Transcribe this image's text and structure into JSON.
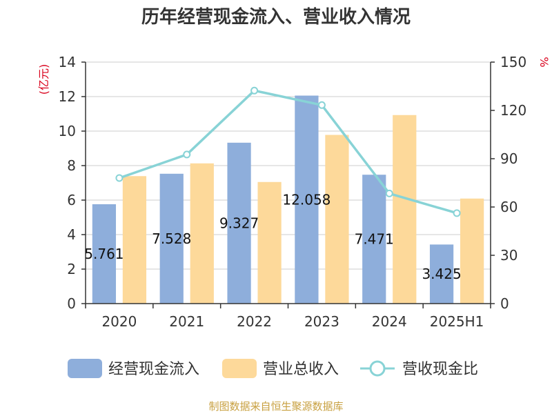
{
  "chart_data": {
    "type": "bar",
    "title": "历年经营现金流入、营业收入情况",
    "categories": [
      "2020",
      "2021",
      "2022",
      "2023",
      "2024",
      "2025H1"
    ],
    "y_left": {
      "unit": "(亿元)",
      "ylim": [
        0,
        14
      ],
      "ticks": [
        0,
        2,
        4,
        6,
        8,
        10,
        12,
        14
      ]
    },
    "y_right": {
      "unit": "%",
      "ylim": [
        0,
        150
      ],
      "ticks": [
        0,
        30,
        60,
        90,
        120,
        150
      ]
    },
    "series": [
      {
        "name": "经营现金流入",
        "kind": "bar",
        "axis": "left",
        "color": "#8eaedb",
        "values": [
          5.761,
          7.528,
          9.327,
          12.058,
          7.471,
          3.425
        ],
        "labels": [
          "5.761",
          "7.528",
          "9.327",
          "12.058",
          "7.471",
          "3.425"
        ]
      },
      {
        "name": "营业总收入",
        "kind": "bar",
        "axis": "left",
        "color": "#fdd99a",
        "values": [
          7.39,
          8.13,
          7.05,
          9.78,
          10.93,
          6.09
        ]
      },
      {
        "name": "营收现金比",
        "kind": "line",
        "axis": "right",
        "color": "#88d3d6",
        "values": [
          78.0,
          92.6,
          132.3,
          123.3,
          68.4,
          56.2
        ]
      }
    ],
    "grid": true,
    "legend": "bottom"
  },
  "footer": {
    "source": "制图数据来自恒生聚源数据库"
  }
}
